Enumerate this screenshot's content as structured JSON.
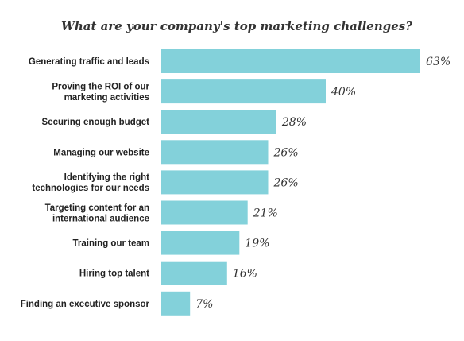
{
  "chart_data": {
    "type": "bar",
    "orientation": "horizontal",
    "title": "What are your company's top marketing challenges?",
    "categories": [
      "Generating traffic and leads",
      "Proving the ROI of our marketing activities",
      "Securing enough budget",
      "Managing our website",
      "Identifying the right technologies for our needs",
      "Targeting content for an international audience",
      "Training our team",
      "Hiring top talent",
      "Finding an executive sponsor"
    ],
    "category_lines": [
      [
        "Generating traffic and leads"
      ],
      [
        "Proving the ROI of our",
        "marketing activities"
      ],
      [
        "Securing enough budget"
      ],
      [
        "Managing our website"
      ],
      [
        "Identifying the right",
        "technologies for our needs"
      ],
      [
        "Targeting content for an",
        "international audience"
      ],
      [
        "Training our team"
      ],
      [
        "Hiring top talent"
      ],
      [
        "Finding an executive sponsor"
      ]
    ],
    "values": [
      63,
      40,
      28,
      26,
      26,
      21,
      19,
      16,
      7
    ],
    "value_labels": [
      "63%",
      "40%",
      "28%",
      "26%",
      "26%",
      "21%",
      "19%",
      "16%",
      "7%"
    ],
    "unit": "%",
    "xlim": [
      0,
      63
    ],
    "grid": false,
    "legend": "none",
    "bar_color": "#83d1da",
    "text_color": "#222222"
  }
}
